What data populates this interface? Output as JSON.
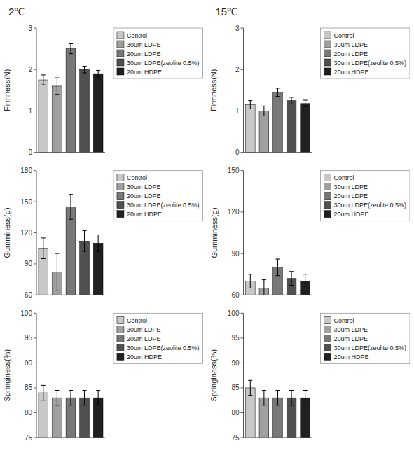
{
  "chart_data": [
    {
      "type": "bar",
      "title": "2℃",
      "categories": [
        null
      ],
      "series": [
        {
          "name": "Control",
          "color": "#c8c8c8",
          "values": [
            1.75
          ],
          "errors": [
            0.12
          ]
        },
        {
          "name": "30um LDPE",
          "color": "#a0a0a0",
          "values": [
            1.6
          ],
          "errors": [
            0.2
          ]
        },
        {
          "name": "20um LDPE",
          "color": "#787878",
          "values": [
            2.5
          ],
          "errors": [
            0.12
          ]
        },
        {
          "name": "30um LDPE(zeolite 0.5%)",
          "color": "#505050",
          "values": [
            2.0
          ],
          "errors": [
            0.08
          ]
        },
        {
          "name": "20um HDPE",
          "color": "#202020",
          "values": [
            1.9
          ],
          "errors": [
            0.08
          ]
        }
      ],
      "ylabel": "Firmness(N)",
      "ylim": [
        0,
        3
      ],
      "yticks": [
        0,
        1,
        2,
        3
      ],
      "grid": false,
      "legend": "right",
      "tick_labels": "y"
    },
    {
      "type": "bar",
      "title": "15℃",
      "categories": [
        null
      ],
      "series": [
        {
          "name": "Control",
          "color": "#c8c8c8",
          "values": [
            1.15
          ],
          "errors": [
            0.1
          ]
        },
        {
          "name": "30um LDPE",
          "color": "#a0a0a0",
          "values": [
            1.0
          ],
          "errors": [
            0.12
          ]
        },
        {
          "name": "20um LDPE",
          "color": "#787878",
          "values": [
            1.45
          ],
          "errors": [
            0.1
          ]
        },
        {
          "name": "30um LDPE(zeolite 0.5%)",
          "color": "#505050",
          "values": [
            1.25
          ],
          "errors": [
            0.08
          ]
        },
        {
          "name": "20um HDPE",
          "color": "#202020",
          "values": [
            1.18
          ],
          "errors": [
            0.08
          ]
        }
      ],
      "ylabel": "Firmness(N)",
      "ylim": [
        0,
        3
      ],
      "yticks": [
        0,
        1,
        2,
        3
      ],
      "grid": false,
      "legend": "right",
      "tick_labels": "y"
    },
    {
      "type": "bar",
      "categories": [
        null
      ],
      "series": [
        {
          "name": "Control",
          "color": "#c8c8c8",
          "values": [
            105
          ],
          "errors": [
            10
          ]
        },
        {
          "name": "30um LDPE",
          "color": "#a0a0a0",
          "values": [
            82
          ],
          "errors": [
            18
          ]
        },
        {
          "name": "20um LDPE",
          "color": "#787878",
          "values": [
            145
          ],
          "errors": [
            12
          ]
        },
        {
          "name": "30um LDPE(zeolite 0.5%)",
          "color": "#505050",
          "values": [
            112
          ],
          "errors": [
            10
          ]
        },
        {
          "name": "20um HDPE",
          "color": "#202020",
          "values": [
            110
          ],
          "errors": [
            8
          ]
        }
      ],
      "ylabel": "Gumminess(g)",
      "ylim": [
        60,
        180
      ],
      "yticks": [
        60,
        90,
        120,
        150,
        180
      ],
      "grid": false,
      "legend": "right",
      "tick_labels": "y"
    },
    {
      "type": "bar",
      "categories": [
        null
      ],
      "series": [
        {
          "name": "Control",
          "color": "#c8c8c8",
          "values": [
            70
          ],
          "errors": [
            5
          ]
        },
        {
          "name": "30um LDPE",
          "color": "#a0a0a0",
          "values": [
            65
          ],
          "errors": [
            6
          ]
        },
        {
          "name": "20um LDPE",
          "color": "#787878",
          "values": [
            80
          ],
          "errors": [
            6
          ]
        },
        {
          "name": "30um LDPE(zeolite 0.5%)",
          "color": "#505050",
          "values": [
            72
          ],
          "errors": [
            5
          ]
        },
        {
          "name": "20um HDPE",
          "color": "#202020",
          "values": [
            70
          ],
          "errors": [
            5
          ]
        }
      ],
      "ylabel": "Gumminess(g)",
      "ylim": [
        60,
        150
      ],
      "yticks": [
        60,
        90,
        120,
        150
      ],
      "grid": false,
      "legend": "right",
      "tick_labels": "y"
    },
    {
      "type": "bar",
      "categories": [
        null
      ],
      "series": [
        {
          "name": "Control",
          "color": "#c8c8c8",
          "values": [
            84
          ],
          "errors": [
            1.5
          ]
        },
        {
          "name": "30um LDPE",
          "color": "#a0a0a0",
          "values": [
            83
          ],
          "errors": [
            1.5
          ]
        },
        {
          "name": "20um LDPE",
          "color": "#787878",
          "values": [
            83
          ],
          "errors": [
            1.5
          ]
        },
        {
          "name": "30um LDPE(zeolite 0.5%)",
          "color": "#505050",
          "values": [
            83
          ],
          "errors": [
            1.5
          ]
        },
        {
          "name": "20um HDPE",
          "color": "#202020",
          "values": [
            83
          ],
          "errors": [
            1.5
          ]
        }
      ],
      "ylabel": "Springiness(%)",
      "ylim": [
        75,
        100
      ],
      "yticks": [
        75,
        80,
        85,
        90,
        95,
        100
      ],
      "grid": false,
      "legend": "right",
      "tick_labels": "y"
    },
    {
      "type": "bar",
      "categories": [
        null
      ],
      "series": [
        {
          "name": "Control",
          "color": "#c8c8c8",
          "values": [
            85
          ],
          "errors": [
            1.5
          ]
        },
        {
          "name": "30um LDPE",
          "color": "#a0a0a0",
          "values": [
            83
          ],
          "errors": [
            1.5
          ]
        },
        {
          "name": "20um LDPE",
          "color": "#787878",
          "values": [
            83
          ],
          "errors": [
            1.5
          ]
        },
        {
          "name": "30um LDPE(zeolite 0.5%)",
          "color": "#505050",
          "values": [
            83
          ],
          "errors": [
            1.5
          ]
        },
        {
          "name": "20um HDPE",
          "color": "#202020",
          "values": [
            83
          ],
          "errors": [
            1.5
          ]
        }
      ],
      "ylabel": "Springiness(%)",
      "ylim": [
        75,
        100
      ],
      "yticks": [
        75,
        80,
        85,
        90,
        95,
        100
      ],
      "grid": false,
      "legend": "right",
      "tick_labels": "y"
    }
  ]
}
